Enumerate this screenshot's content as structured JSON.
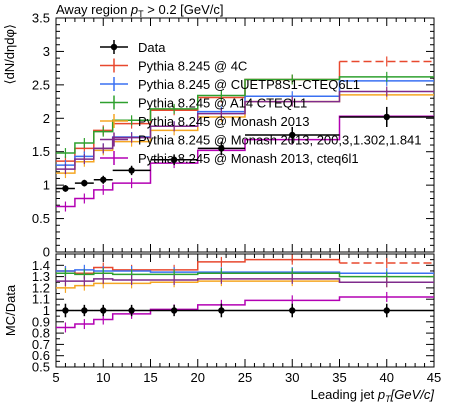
{
  "chart_data": {
    "type": "line",
    "title": "Away region p_T > 0.2 [GeV/c]",
    "title_plain": "Away region ",
    "title_math": "p",
    "title_sub": "T",
    "title_rest": " > 0.2 [GeV/c]",
    "xlabel": "Leading jet p_T [GeV/c]",
    "xlabel_pre": "Leading jet ",
    "xlabel_p": "p",
    "xlabel_sub": "T",
    "xlabel_post": "[GeV/c]",
    "ylabel_top": "⟨dN/dηdφ⟩",
    "ylabel_ratio": "MC/Data",
    "xlim": [
      5,
      45
    ],
    "ylim_top": [
      0,
      3.5
    ],
    "ylim_ratio": [
      0.5,
      1.5
    ],
    "x_ticks": [
      "5",
      "10",
      "15",
      "20",
      "25",
      "30",
      "35",
      "40",
      "45"
    ],
    "y_ticks_top": [
      "0",
      "0.5",
      "1",
      "1.5",
      "2",
      "2.5",
      "3",
      "3.5"
    ],
    "y_ticks_ratio": [
      "0.5",
      "0.6",
      "0.7",
      "0.8",
      "0.9",
      "1",
      "1.1",
      "1.2",
      "1.3",
      "1.4"
    ],
    "bin_edges": [
      5,
      7,
      9,
      11,
      15,
      20,
      25,
      35,
      45
    ],
    "data": {
      "name": "Data",
      "x": [
        6,
        8,
        10,
        13,
        17.5,
        22.5,
        30,
        40
      ],
      "y": [
        0.95,
        1.03,
        1.08,
        1.22,
        1.38,
        1.55,
        1.75,
        2.02
      ],
      "yerr": [
        0.05,
        0.05,
        0.06,
        0.07,
        0.08,
        0.1,
        0.12,
        0.15
      ],
      "ratio_err": [
        0.06,
        0.05,
        0.05,
        0.05,
        0.05,
        0.06,
        0.06,
        0.06
      ]
    },
    "series": [
      {
        "name": "Pythia 8.245 @ 4C",
        "color": "#e8482e",
        "dashed_last": true,
        "values": [
          1.36,
          1.55,
          1.82,
          1.92,
          2.12,
          2.31,
          2.58,
          2.85
        ],
        "ratio": [
          1.35,
          1.33,
          1.38,
          1.36,
          1.36,
          1.43,
          1.45,
          1.42
        ]
      },
      {
        "name": "Pythia 8.245 @ CUETP8S1-CTEQ6L1",
        "color": "#3a70f2",
        "dashed_last": false,
        "values": [
          1.3,
          1.43,
          1.55,
          1.72,
          1.88,
          2.1,
          2.33,
          2.56
        ],
        "ratio": [
          1.35,
          1.36,
          1.35,
          1.35,
          1.34,
          1.34,
          1.34,
          1.33
        ]
      },
      {
        "name": "Pythia 8.245 @ A14 CTEQL1",
        "color": "#2ea02e",
        "dashed_last": false,
        "values": [
          1.48,
          1.63,
          1.8,
          1.97,
          2.14,
          2.34,
          2.58,
          2.62
        ],
        "ratio": [
          1.33,
          1.32,
          1.33,
          1.32,
          1.32,
          1.33,
          1.33,
          1.3
        ]
      },
      {
        "name": "Pythia 8.245 @ Monash 2013",
        "color": "#f5a623",
        "dashed_last": false,
        "values": [
          1.18,
          1.35,
          1.52,
          1.65,
          1.82,
          2.02,
          2.25,
          2.35
        ],
        "ratio": [
          1.2,
          1.22,
          1.24,
          1.24,
          1.25,
          1.26,
          1.26,
          1.25
        ]
      },
      {
        "name": "Pythia 8.245 @ Monash 2013, 200,3,1.302,1.841",
        "color": "#7f2b8c",
        "dashed_last": false,
        "values": [
          1.24,
          1.39,
          1.55,
          1.71,
          1.88,
          2.07,
          2.25,
          2.4
        ],
        "ratio": [
          1.26,
          1.26,
          1.28,
          1.27,
          1.27,
          1.28,
          1.28,
          1.25
        ]
      },
      {
        "name": "Pythia 8.245 @ Monash 2013, cteq6l1",
        "color": "#b300b3",
        "dashed_last": false,
        "values": [
          0.68,
          0.8,
          0.93,
          1.03,
          1.33,
          1.52,
          1.68,
          2.03
        ],
        "ratio": [
          0.85,
          0.88,
          0.92,
          0.97,
          1.01,
          1.05,
          1.09,
          1.12
        ]
      }
    ],
    "legend_position": "top-left",
    "legend": [
      "Data",
      "Pythia 8.245 @ 4C",
      "Pythia 8.245 @ CUETP8S1-CTEQ6L1",
      "Pythia 8.245 @ A14 CTEQL1",
      "Pythia 8.245 @ Monash 2013",
      "Pythia 8.245 @ Monash 2013, 200,3,1.302,1.841",
      "Pythia 8.245 @ Monash 2013, cteq6l1"
    ]
  }
}
